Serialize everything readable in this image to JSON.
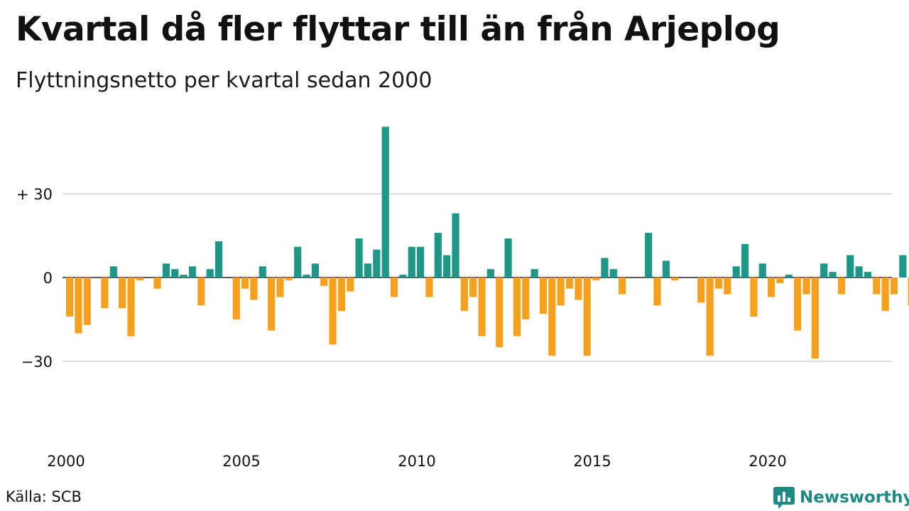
{
  "title": "Kvartal då fler flyttar till än från Arjeplog",
  "subtitle": "Flyttningsnetto per kvartal sedan 2000",
  "source": "Källa: SCB",
  "brand": {
    "name": "Newsworthy",
    "icon": "newsworthy-logo-icon"
  },
  "colors": {
    "positive": "#1e9688",
    "negative": "#f5a11e",
    "grid": "#dddddd",
    "axis": "#222222"
  },
  "chart_data": {
    "type": "bar",
    "title": "Kvartal då fler flyttar till än från Arjeplog",
    "subtitle": "Flyttningsnetto per kvartal sedan 2000",
    "x_start": "2000 Q1",
    "x_ticks": [
      "2000",
      "2005",
      "2010",
      "2015",
      "2020"
    ],
    "y_ticks": [
      {
        "value": 30,
        "label": "+ 30"
      },
      {
        "value": 0,
        "label": "0"
      },
      {
        "value": -30,
        "label": "−30"
      }
    ],
    "ylim": [
      -60,
      55
    ],
    "grid": true,
    "legend": "none",
    "values": [
      -14,
      -20,
      -17,
      0,
      -11,
      4,
      -11,
      -21,
      -1,
      0,
      -4,
      5,
      3,
      1,
      4,
      -10,
      3,
      13,
      0,
      -15,
      -4,
      -8,
      4,
      -19,
      -7,
      -1,
      11,
      1,
      5,
      -3,
      -24,
      -12,
      -5,
      14,
      5,
      10,
      54,
      -7,
      1,
      11,
      11,
      -7,
      16,
      8,
      23,
      -12,
      -7,
      -21,
      3,
      -25,
      14,
      -21,
      -15,
      3,
      -13,
      -28,
      -10,
      -4,
      -8,
      -28,
      -1,
      7,
      3,
      -6,
      0,
      0,
      16,
      -10,
      6,
      -1,
      0,
      0,
      -9,
      -28,
      -4,
      -6,
      4,
      12,
      -14,
      5,
      -7,
      -2,
      1,
      -19,
      -6,
      -29,
      5,
      2,
      -6,
      8,
      4,
      2,
      -6,
      -12,
      -6,
      8,
      -10
    ]
  }
}
